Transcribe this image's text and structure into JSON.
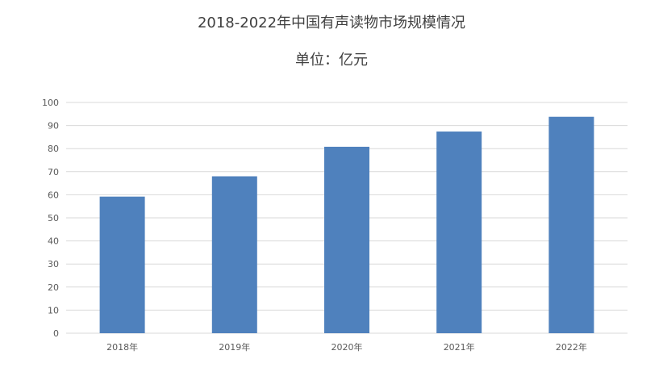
{
  "chart_data": {
    "type": "bar",
    "title": "2018-2022年中国有声读物市场规模情况",
    "subtitle": "单位：亿元",
    "categories": [
      "2018年",
      "2019年",
      "2020年",
      "2021年",
      "2022年"
    ],
    "values": [
      59.2,
      68.0,
      80.8,
      87.4,
      93.8
    ],
    "ylim": [
      0,
      100
    ],
    "yticks": [
      0,
      10,
      20,
      30,
      40,
      50,
      60,
      70,
      80,
      90,
      100
    ],
    "grid": true,
    "legend": "none",
    "colors": {
      "bar": "#4f81bd",
      "grid": "#d9d9d9",
      "text": "#404040"
    }
  }
}
